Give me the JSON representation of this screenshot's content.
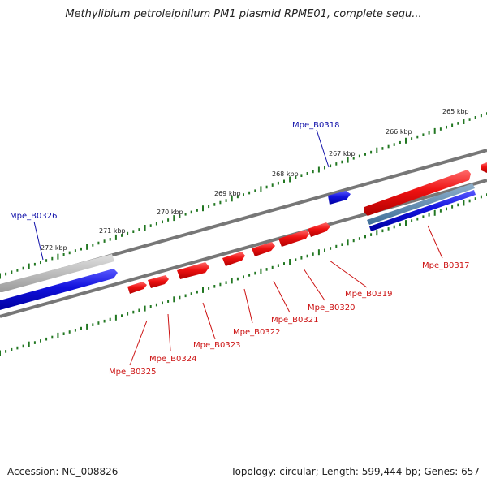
{
  "title": "Methylibium petroleiphilum PM1 plasmid RPME01, complete sequ...",
  "footer": {
    "accession": "Accession: NC_008826",
    "summary": "Topology: circular; Length: 599,444 bp; Genes: 657"
  },
  "colors": {
    "forward_gene": "#ee1111",
    "reverse_gene": "#1111dd",
    "forward_label": "#cc1111",
    "reverse_label": "#1111aa",
    "backbone": "#808080",
    "tick": "#227722"
  },
  "kbp_labels": [
    "265 kbp",
    "266 kbp",
    "267 kbp",
    "268 kbp",
    "269 kbp",
    "270 kbp",
    "271 kbp",
    "272 kbp"
  ],
  "genes_top": [
    {
      "label": "Mpe_B0318"
    },
    {
      "label": "Mpe_B0326"
    }
  ],
  "genes_bottom": [
    {
      "label": "Mpe_B0317"
    },
    {
      "label": "Mpe_B0319"
    },
    {
      "label": "Mpe_B0320"
    },
    {
      "label": "Mpe_B0321"
    },
    {
      "label": "Mpe_B0322"
    },
    {
      "label": "Mpe_B0323"
    },
    {
      "label": "Mpe_B0324"
    },
    {
      "label": "Mpe_B0325"
    }
  ]
}
